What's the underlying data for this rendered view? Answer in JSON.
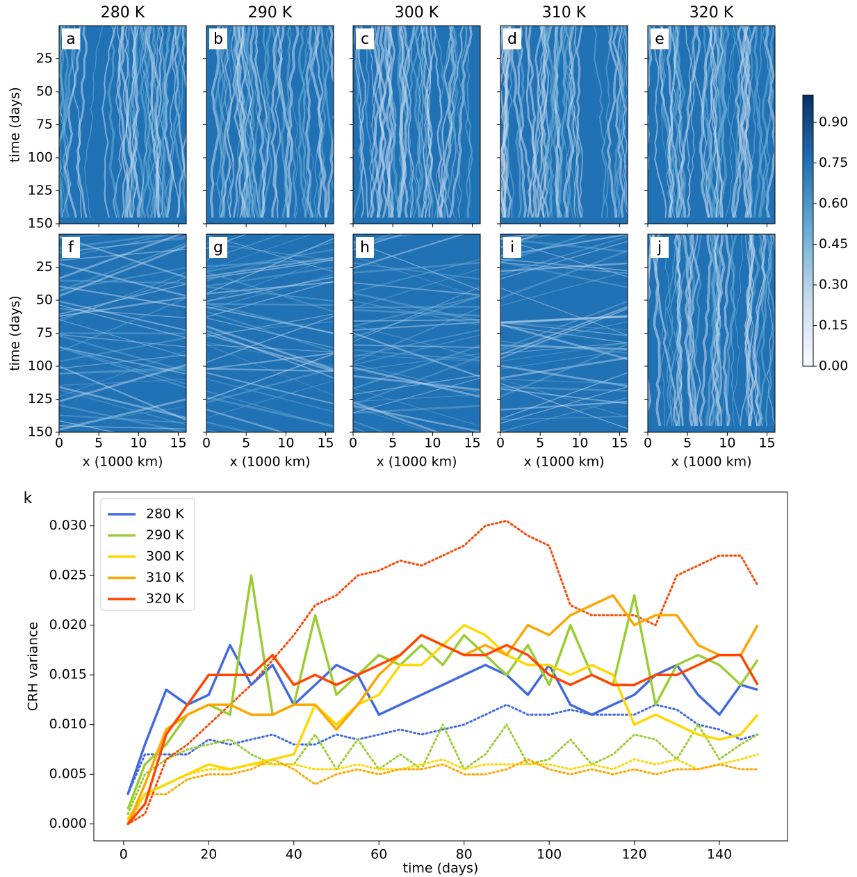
{
  "chart_data": [
    {
      "type": "heatmap-grid",
      "column_titles": [
        "280 K",
        "290 K",
        "300 K",
        "310 K",
        "320 K"
      ],
      "panel_labels": [
        "a",
        "b",
        "c",
        "d",
        "e",
        "f",
        "g",
        "h",
        "i",
        "j"
      ],
      "ylabel": "time (days)",
      "xlabel": "x (1000 km)",
      "xlim": [
        0,
        16
      ],
      "xticks": [
        0,
        5,
        10,
        15
      ],
      "ylim": [
        0,
        150
      ],
      "y_inverted": true,
      "yticks": [
        25,
        50,
        75,
        100,
        125,
        150
      ],
      "colormap": [
        "#f7fbff",
        "#c6dbef",
        "#6baed6",
        "#2171b5",
        "#08306b"
      ],
      "colorbar_lim": [
        0,
        1
      ],
      "colorbar_ticks": [
        {
          "value": 0,
          "label": "0.00"
        },
        {
          "value": 0.15,
          "label": "0.15"
        },
        {
          "value": 0.3,
          "label": "0.30"
        },
        {
          "value": 0.45,
          "label": "0.45"
        },
        {
          "value": 0.6,
          "label": "0.60"
        },
        {
          "value": 0.75,
          "label": "0.75"
        },
        {
          "value": 0.9,
          "label": "0.90"
        }
      ]
    },
    {
      "type": "line",
      "panel_label": "k",
      "xlabel": "time (days)",
      "ylabel": "CRH variance",
      "x": [
        1,
        5,
        10,
        15,
        20,
        25,
        30,
        35,
        40,
        45,
        50,
        55,
        60,
        65,
        70,
        75,
        80,
        85,
        90,
        95,
        100,
        105,
        110,
        115,
        120,
        125,
        130,
        135,
        140,
        145,
        149
      ],
      "xlim": [
        -7,
        156
      ],
      "xticks": [
        0,
        20,
        40,
        60,
        80,
        100,
        120,
        140
      ],
      "ylim": [
        -0.0017,
        0.0334
      ],
      "yticks": [
        {
          "value": 0,
          "label": "0.000"
        },
        {
          "value": 0.005,
          "label": "0.005"
        },
        {
          "value": 0.01,
          "label": "0.010"
        },
        {
          "value": 0.015,
          "label": "0.015"
        },
        {
          "value": 0.02,
          "label": "0.020"
        },
        {
          "value": 0.025,
          "label": "0.025"
        },
        {
          "value": 0.03,
          "label": "0.030"
        }
      ],
      "legend": "upper left",
      "series": [
        {
          "name": "280 K",
          "color": "#4169e1",
          "values": [
            0.003,
            0.008,
            0.0135,
            0.012,
            0.013,
            0.018,
            0.014,
            0.016,
            0.012,
            0.014,
            0.016,
            0.015,
            0.011,
            0.012,
            0.013,
            0.014,
            0.015,
            0.016,
            0.015,
            0.013,
            0.016,
            0.012,
            0.011,
            0.012,
            0.013,
            0.015,
            0.016,
            0.013,
            0.011,
            0.014,
            0.0135
          ],
          "dotted_values": [
            0.003,
            0.007,
            0.007,
            0.007,
            0.0085,
            0.008,
            0.0085,
            0.009,
            0.008,
            0.008,
            0.009,
            0.0085,
            0.009,
            0.0095,
            0.009,
            0.0095,
            0.01,
            0.011,
            0.012,
            0.011,
            0.011,
            0.0115,
            0.011,
            0.011,
            0.011,
            0.012,
            0.0115,
            0.01,
            0.0095,
            0.0085,
            0.009
          ]
        },
        {
          "name": "290 K",
          "color": "#9acd32",
          "values": [
            0.0015,
            0.006,
            0.008,
            0.011,
            0.012,
            0.011,
            0.025,
            0.011,
            0.012,
            0.021,
            0.013,
            0.015,
            0.017,
            0.016,
            0.018,
            0.016,
            0.019,
            0.017,
            0.015,
            0.018,
            0.014,
            0.02,
            0.015,
            0.014,
            0.023,
            0.012,
            0.016,
            0.017,
            0.016,
            0.014,
            0.0165
          ],
          "dotted_values": [
            0.001,
            0.005,
            0.0065,
            0.0075,
            0.008,
            0.0085,
            0.007,
            0.006,
            0.006,
            0.009,
            0.0055,
            0.0085,
            0.0055,
            0.007,
            0.0055,
            0.01,
            0.0055,
            0.007,
            0.01,
            0.006,
            0.0065,
            0.0085,
            0.006,
            0.007,
            0.009,
            0.0085,
            0.0065,
            0.01,
            0.0065,
            0.008,
            0.009
          ]
        },
        {
          "name": "300 K",
          "color": "#ffd700",
          "values": [
            0.0005,
            0.003,
            0.004,
            0.005,
            0.006,
            0.0055,
            0.006,
            0.0065,
            0.007,
            0.012,
            0.01,
            0.012,
            0.013,
            0.016,
            0.016,
            0.018,
            0.02,
            0.019,
            0.017,
            0.016,
            0.016,
            0.015,
            0.016,
            0.015,
            0.01,
            0.011,
            0.01,
            0.009,
            0.0085,
            0.009,
            0.011
          ],
          "dotted_values": [
            0.0005,
            0.003,
            0.004,
            0.005,
            0.0055,
            0.0055,
            0.006,
            0.006,
            0.006,
            0.0055,
            0.0055,
            0.006,
            0.0055,
            0.0055,
            0.006,
            0.0065,
            0.0055,
            0.006,
            0.006,
            0.006,
            0.006,
            0.0055,
            0.006,
            0.0055,
            0.0065,
            0.006,
            0.0065,
            0.0055,
            0.006,
            0.0065,
            0.007
          ]
        },
        {
          "name": "310 K",
          "color": "#ffa500",
          "values": [
            0,
            0.004,
            0.0095,
            0.011,
            0.012,
            0.012,
            0.011,
            0.011,
            0.012,
            0.012,
            0.0095,
            0.012,
            0.015,
            0.017,
            0.019,
            0.018,
            0.017,
            0.018,
            0.017,
            0.02,
            0.019,
            0.021,
            0.022,
            0.023,
            0.02,
            0.021,
            0.021,
            0.018,
            0.017,
            0.017,
            0.02
          ],
          "dotted_values": [
            0,
            0.003,
            0.003,
            0.0045,
            0.005,
            0.005,
            0.0055,
            0.0065,
            0.0055,
            0.004,
            0.005,
            0.0055,
            0.005,
            0.0055,
            0.0055,
            0.006,
            0.005,
            0.005,
            0.0055,
            0.0065,
            0.0055,
            0.005,
            0.0055,
            0.005,
            0.0055,
            0.005,
            0.0055,
            0.0055,
            0.006,
            0.0055,
            0.0055
          ]
        },
        {
          "name": "320 K",
          "color": "#ff4500",
          "values": [
            0,
            0.002,
            0.009,
            0.012,
            0.015,
            0.015,
            0.015,
            0.017,
            0.014,
            0.015,
            0.014,
            0.015,
            0.016,
            0.017,
            0.019,
            0.018,
            0.017,
            0.017,
            0.018,
            0.017,
            0.015,
            0.014,
            0.015,
            0.014,
            0.014,
            0.015,
            0.015,
            0.016,
            0.017,
            0.017,
            0.014
          ],
          "dotted_values": [
            0,
            0.001,
            0.0065,
            0.008,
            0.01,
            0.012,
            0.014,
            0.0165,
            0.019,
            0.022,
            0.023,
            0.025,
            0.0255,
            0.0265,
            0.026,
            0.027,
            0.028,
            0.03,
            0.0305,
            0.029,
            0.028,
            0.022,
            0.021,
            0.021,
            0.021,
            0.02,
            0.025,
            0.026,
            0.027,
            0.027,
            0.024
          ]
        }
      ]
    }
  ]
}
